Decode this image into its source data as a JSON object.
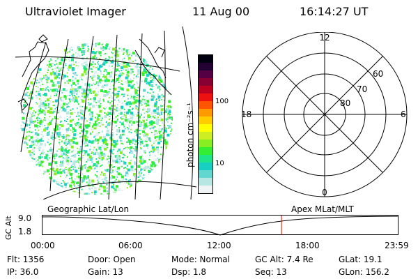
{
  "header": {
    "instrument": "Ultraviolet Imager",
    "date": "11 Aug 00",
    "time": "16:14:27 UT"
  },
  "colorbar": {
    "unit_label": "photon cm⁻²s⁻¹",
    "tick_100": "100",
    "tick_10": "10",
    "colors": [
      "#f0f4f4",
      "#b8e6e2",
      "#63d6d0",
      "#18cfc3",
      "#1fe58a",
      "#33ee33",
      "#88ee22",
      "#ccee22",
      "#ffff00",
      "#ffcc00",
      "#ff9900",
      "#ff5500",
      "#ee1111",
      "#bb0022",
      "#880033",
      "#550044",
      "#220033",
      "#000011"
    ]
  },
  "polar_plot": {
    "mlt_12": "12",
    "mlt_18": "18",
    "mlt_6": "6",
    "mlt_0": "0",
    "lat_60": "60",
    "lat_70": "70",
    "lat_80": "80"
  },
  "timeline": {
    "left_label": "Geographic Lat/Lon",
    "right_label": "Apex MLat/MLT",
    "y_axis_label": "GC Alt",
    "y_max": "9.0",
    "y_min": "1.8",
    "x_ticks": [
      "00:00",
      "06:00",
      "12:00",
      "18:00",
      "23:59"
    ],
    "marker_color": "#dd0000"
  },
  "status": {
    "flt": "Flt: 1356",
    "door": "Door: Open",
    "mode": "Mode: Normal",
    "gc_alt": "GC Alt: 7.4 Re",
    "glat": "GLat:  19.1",
    "ip": "IP: 36.0",
    "gain": "Gain: 13",
    "dsp": "Dsp:     1.8",
    "seq": "Seq: 13",
    "glon": "GLon: 156.2"
  }
}
